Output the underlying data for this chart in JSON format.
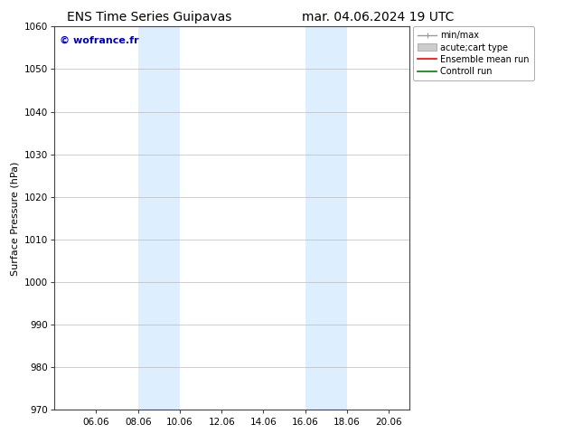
{
  "title_left": "ENS Time Series Guipavas",
  "title_right": "mar. 04.06.2024 19 UTC",
  "ylabel": "Surface Pressure (hPa)",
  "ylim": [
    970,
    1060
  ],
  "yticks": [
    970,
    980,
    990,
    1000,
    1010,
    1020,
    1030,
    1040,
    1050,
    1060
  ],
  "xtick_labels": [
    "06.06",
    "08.06",
    "10.06",
    "12.06",
    "14.06",
    "16.06",
    "18.06",
    "20.06"
  ],
  "xtick_positions": [
    2,
    4,
    6,
    8,
    10,
    12,
    14,
    16
  ],
  "xlim": [
    0,
    17
  ],
  "shaded_bands": [
    {
      "x_start": 4,
      "x_end": 6
    },
    {
      "x_start": 12,
      "x_end": 14
    }
  ],
  "shaded_color": "#ddeeff",
  "background_color": "#ffffff",
  "watermark_text": "© wofrance.fr",
  "watermark_color": "#0000bb",
  "legend_items": [
    {
      "label": "min/max",
      "color": "#999999"
    },
    {
      "label": "acute;cart type",
      "color": "#cccccc"
    },
    {
      "label": "Ensemble mean run",
      "color": "#ff0000"
    },
    {
      "label": "Controll run",
      "color": "#008000"
    }
  ],
  "grid_color": "#bbbbbb",
  "title_fontsize": 10,
  "tick_fontsize": 7.5,
  "ylabel_fontsize": 8,
  "legend_fontsize": 7,
  "watermark_fontsize": 8
}
